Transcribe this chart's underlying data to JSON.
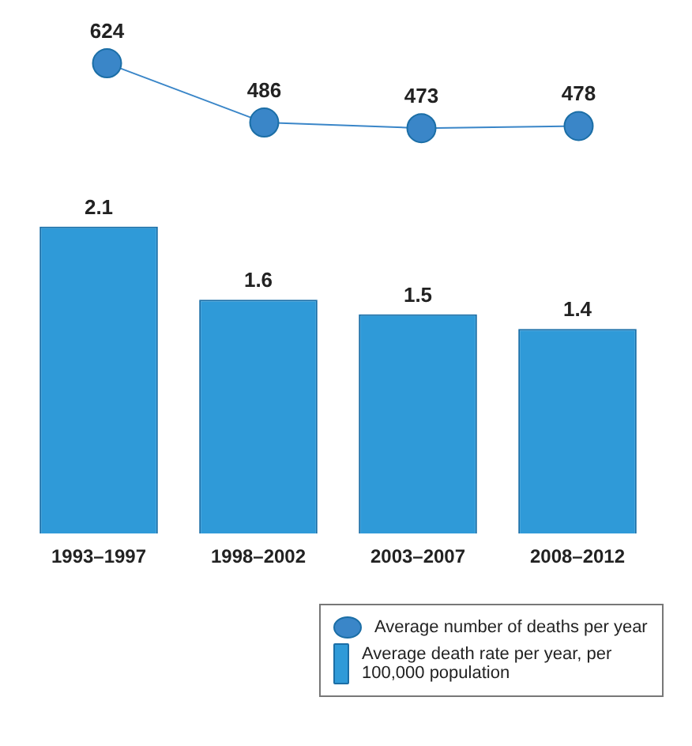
{
  "chart_data": [
    {
      "type": "line",
      "categories": [
        null,
        null,
        null,
        null
      ],
      "tick_labels": false,
      "series": [
        {
          "name": "Average number of deaths per year",
          "color": "#3a86c8",
          "values": [
            624,
            486,
            473,
            478
          ]
        }
      ],
      "data_labels": true,
      "legend": "bottom right",
      "grid": false,
      "marker": "circle"
    },
    {
      "type": "bar",
      "categories": [
        "1993–1997",
        "1998–2002",
        "2003–2007",
        "2008–2012"
      ],
      "series": [
        {
          "name": "Average death rate per year, per 100,000 population",
          "color": "#2f9ad8",
          "values": [
            2.1,
            1.6,
            1.5,
            1.4
          ]
        }
      ],
      "data_labels": true,
      "legend": "bottom right",
      "grid": false
    }
  ]
}
